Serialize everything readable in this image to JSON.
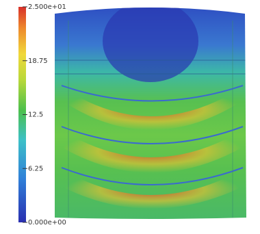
{
  "colorbar": {
    "range": [
      0,
      25
    ],
    "ticks": [
      {
        "value": 25,
        "label": "2.500e+01"
      },
      {
        "value": 18.75,
        "label": "18.75"
      },
      {
        "value": 12.5,
        "label": "12.5"
      },
      {
        "value": 6.25,
        "label": "6.25"
      },
      {
        "value": 0,
        "label": "0.000e+00"
      }
    ]
  }
}
